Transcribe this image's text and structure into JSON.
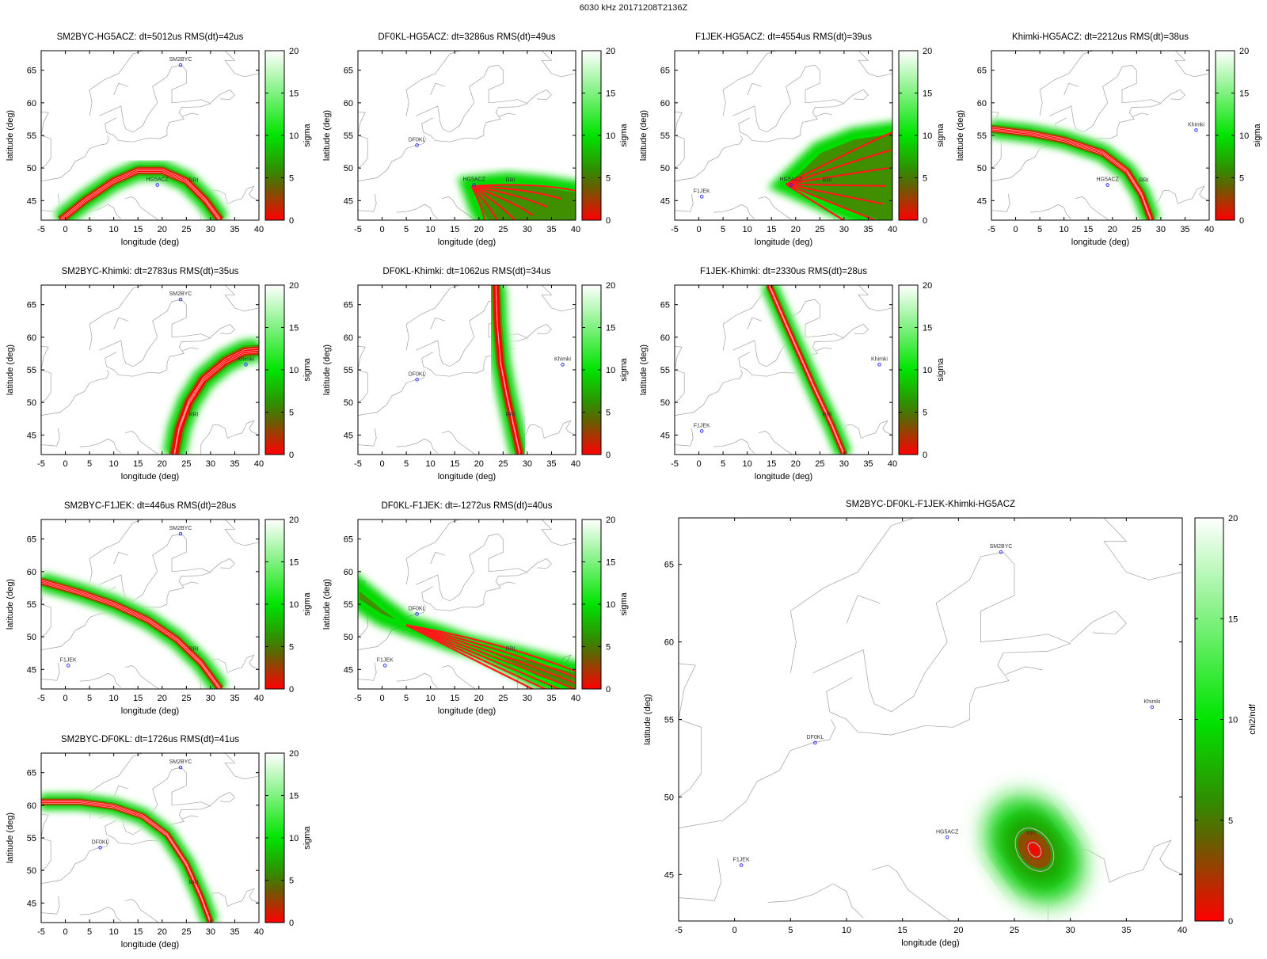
{
  "title": "6030 kHz 20171208T2136Z",
  "chart_data": {
    "type": "heatmap",
    "xlabel": "longitude (deg)",
    "ylabel": "latitude (deg)",
    "xlim": [
      -5,
      40
    ],
    "ylim": [
      42,
      68
    ],
    "xticks": [
      -5,
      0,
      5,
      10,
      15,
      20,
      25,
      30,
      35,
      40
    ],
    "yticks": [
      45,
      50,
      55,
      60,
      65
    ],
    "colorbar": {
      "label": "sigma",
      "label_combined": "chi2/ndf",
      "range": [
        0,
        20
      ],
      "ticks": [
        0,
        5,
        10,
        15,
        20
      ],
      "colors": [
        "#ff0000",
        "#00e400",
        "#ffffff"
      ]
    },
    "stations": [
      {
        "name": "SM2BYC",
        "lon": 23.8,
        "lat": 65.8
      },
      {
        "name": "DF0KL",
        "lon": 7.2,
        "lat": 53.5
      },
      {
        "name": "F1JEK",
        "lon": 0.6,
        "lat": 45.6
      },
      {
        "name": "Khimki",
        "lon": 37.3,
        "lat": 55.8
      },
      {
        "name": "HG5ACZ",
        "lon": 19.0,
        "lat": 47.4
      },
      {
        "name": "RRI",
        "lon": 26.5,
        "lat": 47.3,
        "marker": false
      }
    ],
    "panels": [
      {
        "title": "SM2BYC-HG5ACZ:  dt=5012us RMS(dt)=42us",
        "stations": [
          "SM2BYC",
          "HG5ACZ"
        ],
        "band": [
          [
            -1,
            42
          ],
          [
            4,
            45
          ],
          [
            10,
            48
          ],
          [
            15,
            49.6
          ],
          [
            20,
            49.6
          ],
          [
            25,
            48
          ],
          [
            29,
            45
          ],
          [
            32,
            42
          ]
        ],
        "halfwidth": 1.0
      },
      {
        "title": "DF0KL-HG5ACZ:  dt=3286us RMS(dt)=49us",
        "stations": [
          "DF0KL",
          "HG5ACZ"
        ],
        "fan": {
          "apex": [
            18.5,
            47.2
          ],
          "upper": [
            [
              18.5,
              47.2
            ],
            [
              26,
              47.8
            ],
            [
              33,
              47.3
            ],
            [
              40,
              46.5
            ]
          ],
          "lower": [
            [
              18.5,
              47.2
            ],
            [
              20,
              44
            ],
            [
              21.5,
              42
            ]
          ]
        }
      },
      {
        "title": "F1JEK-HG5ACZ:  dt=4554us RMS(dt)=39us",
        "stations": [
          "F1JEK",
          "HG5ACZ"
        ],
        "fan": {
          "apex": [
            18.0,
            47.5
          ],
          "upper": [
            [
              18,
              47.5
            ],
            [
              25,
              52.5
            ],
            [
              32,
              54.6
            ],
            [
              40,
              55.5
            ]
          ],
          "lower": [
            [
              18,
              47.5
            ],
            [
              27,
              44.5
            ],
            [
              34,
              42.5
            ],
            [
              36.5,
              42
            ]
          ]
        }
      },
      {
        "title": "Khimki-HG5ACZ:  dt=2212us RMS(dt)=38us",
        "stations": [
          "Khimki",
          "HG5ACZ"
        ],
        "band": [
          [
            -5,
            56
          ],
          [
            3,
            55.3
          ],
          [
            10,
            54.3
          ],
          [
            18,
            52.3
          ],
          [
            23,
            49.5
          ],
          [
            26,
            46
          ],
          [
            28,
            42
          ]
        ],
        "halfwidth": 0.9
      },
      {
        "title": "SM2BYC-Khimki:  dt=2783us RMS(dt)=35us",
        "stations": [
          "SM2BYC",
          "Khimki"
        ],
        "band": [
          [
            22.5,
            42
          ],
          [
            23.5,
            46
          ],
          [
            25.5,
            50
          ],
          [
            28.5,
            53.5
          ],
          [
            33,
            56.3
          ],
          [
            37,
            57.8
          ],
          [
            40,
            58
          ]
        ],
        "halfwidth": 1.2
      },
      {
        "title": "DF0KL-Khimki:  dt=1062us RMS(dt)=34us",
        "stations": [
          "DF0KL",
          "Khimki"
        ],
        "band": [
          [
            23.5,
            68
          ],
          [
            23.8,
            62
          ],
          [
            24.5,
            56
          ],
          [
            25.8,
            51
          ],
          [
            27.3,
            46
          ],
          [
            28.5,
            42
          ]
        ],
        "halfwidth": 1.0
      },
      {
        "title": "F1JEK-Khimki:  dt=2330us RMS(dt)=28us",
        "stations": [
          "F1JEK",
          "Khimki"
        ],
        "band": [
          [
            14.5,
            68
          ],
          [
            18,
            62
          ],
          [
            21,
            57
          ],
          [
            24,
            52
          ],
          [
            27.5,
            46.5
          ],
          [
            30,
            42
          ]
        ],
        "halfwidth": 0.8
      },
      {
        "title": "SM2BYC-F1JEK:  dt=446us RMS(dt)=28us",
        "stations": [
          "SM2BYC",
          "F1JEK"
        ],
        "band": [
          [
            -5,
            58.5
          ],
          [
            3,
            56.8
          ],
          [
            10,
            55
          ],
          [
            17,
            52.6
          ],
          [
            23,
            49.6
          ],
          [
            28,
            46
          ],
          [
            32,
            42
          ]
        ],
        "halfwidth": 0.9
      },
      {
        "title": "DF0KL-F1JEK:  dt=-1272us RMS(dt)=40us",
        "stations": [
          "DF0KL",
          "F1JEK"
        ],
        "fan": {
          "apex": [
            5.0,
            51.8
          ],
          "upper": [
            [
              -5,
              57.5
            ],
            [
              0,
              54.5
            ],
            [
              5,
              51.8
            ],
            [
              15,
              49.2
            ],
            [
              26,
              47.3
            ],
            [
              40,
              44.7
            ]
          ],
          "lower": [
            [
              -5,
              55.6
            ],
            [
              0,
              53.2
            ],
            [
              5,
              51.8
            ],
            [
              12,
              50.2
            ],
            [
              22,
              47.6
            ],
            [
              32,
              43.8
            ],
            [
              40,
              41.8
            ]
          ]
        }
      },
      {
        "title": "SM2BYC-DF0KL:  dt=1726us RMS(dt)=41us",
        "stations": [
          "SM2BYC",
          "DF0KL"
        ],
        "band": [
          [
            -5,
            60.5
          ],
          [
            3,
            60.5
          ],
          [
            10,
            59.8
          ],
          [
            16,
            58.3
          ],
          [
            21,
            55.5
          ],
          [
            25,
            51
          ],
          [
            28,
            46
          ],
          [
            30,
            42
          ]
        ],
        "halfwidth": 0.8
      }
    ],
    "combined": {
      "title": "SM2BYC-DF0KL-F1JEK-Khimki-HG5ACZ",
      "stations": [
        "SM2BYC",
        "DF0KL",
        "F1JEK",
        "Khimki",
        "HG5ACZ"
      ],
      "ellipse": {
        "center": [
          26.8,
          46.6
        ],
        "rx_deg": 4.3,
        "ry_deg": 6.0,
        "angle_deg": -35
      }
    }
  }
}
